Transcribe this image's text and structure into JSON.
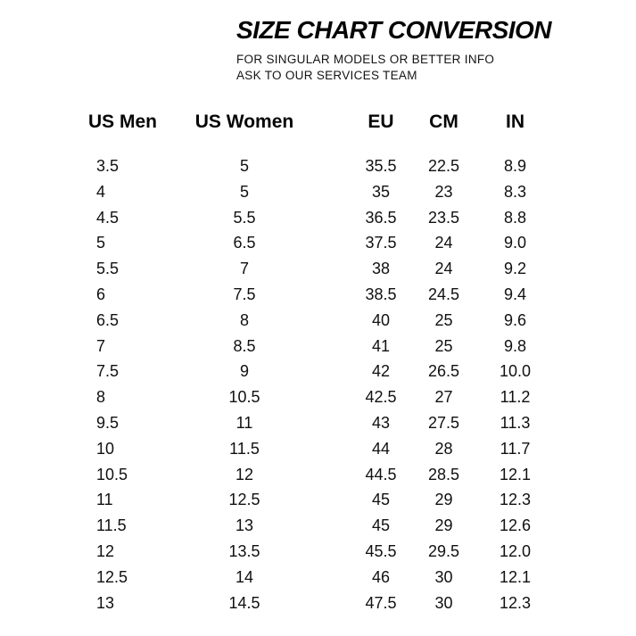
{
  "page": {
    "title": "SIZE CHART CONVERSION",
    "subtitle_line1": "FOR SINGULAR MODELS OR BETTER INFO",
    "subtitle_line2": "ASK TO OUR SERVICES TEAM"
  },
  "colors": {
    "background": "#ffffff",
    "text": "#0b0b0b"
  },
  "chart_data": {
    "type": "table",
    "title": "SIZE CHART CONVERSION",
    "columns": [
      "US Men",
      "US Women",
      "EU",
      "CM",
      "IN"
    ],
    "rows": [
      [
        "3.5",
        "5",
        "35.5",
        "22.5",
        "8.9"
      ],
      [
        "4",
        "5",
        "35",
        "23",
        "8.3"
      ],
      [
        "4.5",
        "5.5",
        "36.5",
        "23.5",
        "8.8"
      ],
      [
        "5",
        "6.5",
        "37.5",
        "24",
        "9.0"
      ],
      [
        "5.5",
        "7",
        "38",
        "24",
        "9.2"
      ],
      [
        "6",
        "7.5",
        "38.5",
        "24.5",
        "9.4"
      ],
      [
        "6.5",
        "8",
        "40",
        "25",
        "9.6"
      ],
      [
        "7",
        "8.5",
        "41",
        "25",
        "9.8"
      ],
      [
        "7.5",
        "9",
        "42",
        "26.5",
        "10.0"
      ],
      [
        "8",
        "10.5",
        "42.5",
        "27",
        "11.2"
      ],
      [
        "9.5",
        "11",
        "43",
        "27.5",
        "11.3"
      ],
      [
        "10",
        "11.5",
        "44",
        "28",
        "11.7"
      ],
      [
        "10.5",
        "12",
        "44.5",
        "28.5",
        "12.1"
      ],
      [
        "11",
        "12.5",
        "45",
        "29",
        "12.3"
      ],
      [
        "11.5",
        "13",
        "45",
        "29",
        "12.6"
      ],
      [
        "12",
        "13.5",
        "45.5",
        "29.5",
        "12.0"
      ],
      [
        "12.5",
        "14",
        "46",
        "30",
        "12.1"
      ],
      [
        "13",
        "14.5",
        "47.5",
        "30",
        "12.3"
      ]
    ]
  }
}
